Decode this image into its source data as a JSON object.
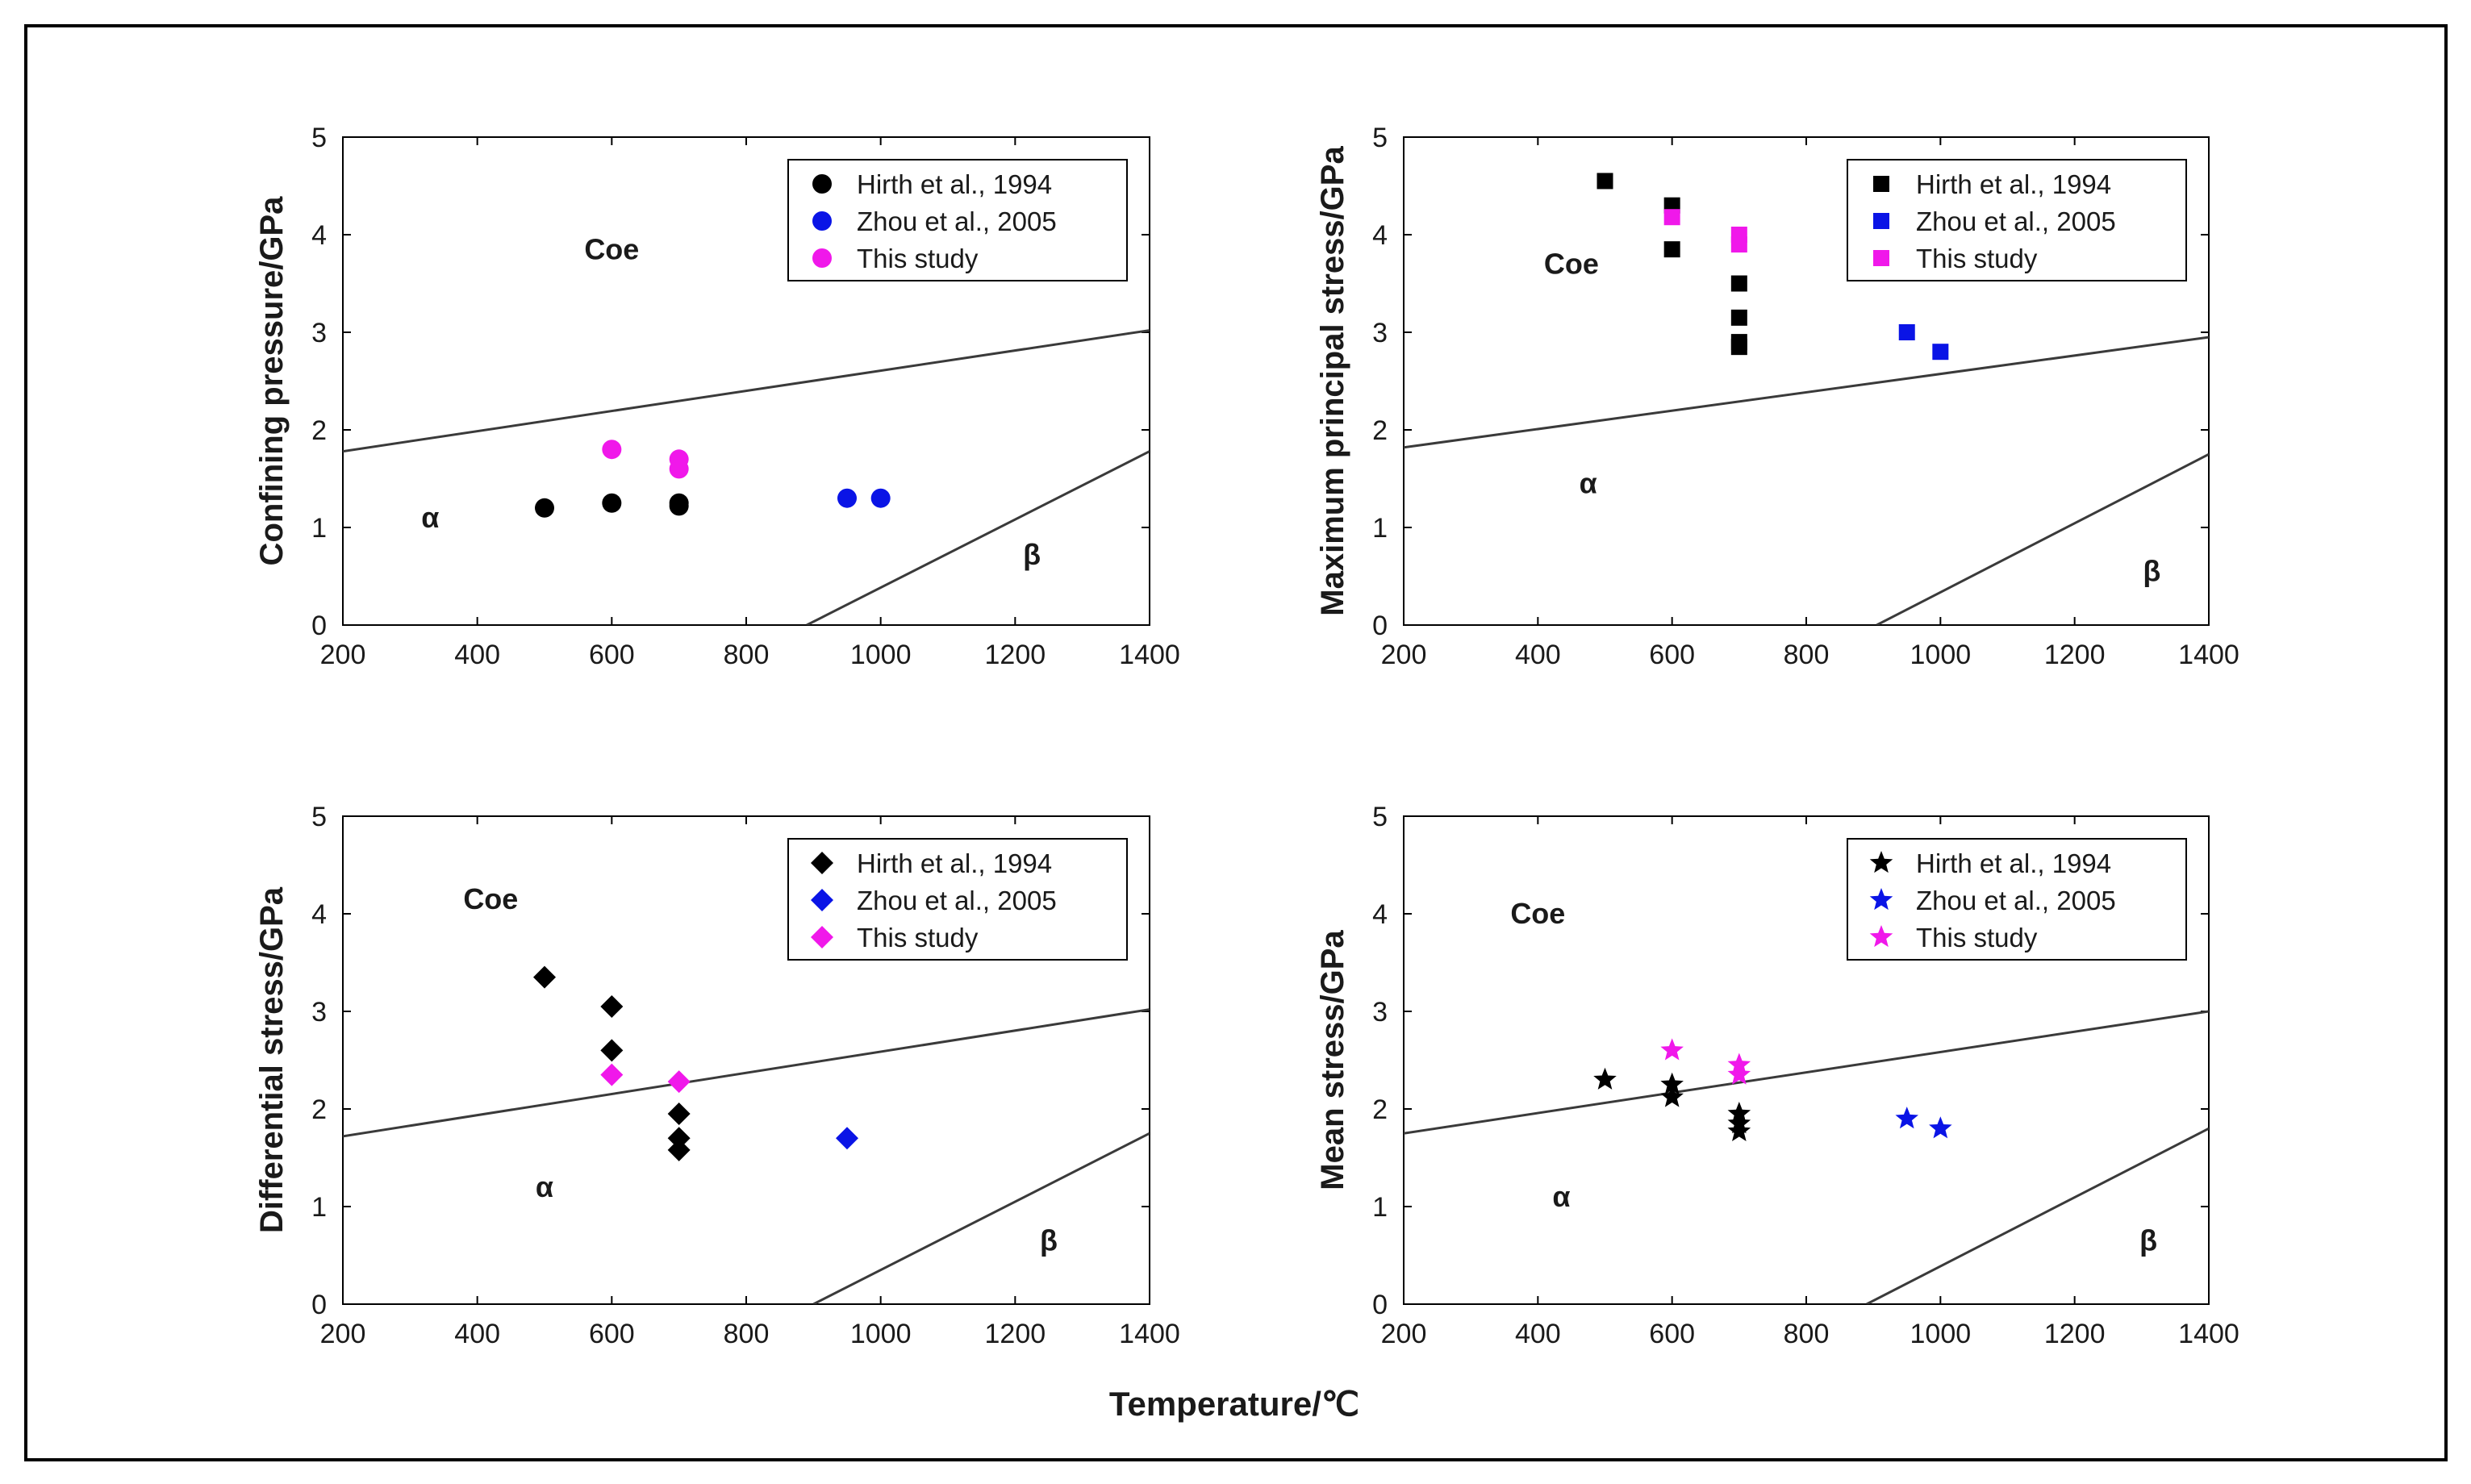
{
  "colors": {
    "hirth": "#000000",
    "zhou": "#0a14e6",
    "this_study": "#f018ea",
    "boundary": "#3a3a3a",
    "frame": "#000000"
  },
  "figure": {
    "xlabel": "Temperature/℃"
  },
  "chart_data": [
    {
      "type": "scatter",
      "marker": "circle",
      "ylabel": "Confining pressure/GPa",
      "xlim": [
        200,
        1400
      ],
      "ylim": [
        0,
        5
      ],
      "xticks": [
        "200",
        "400",
        "600",
        "800",
        "1000",
        "1200",
        "1400"
      ],
      "yticks": [
        "0",
        "1",
        "2",
        "3",
        "4",
        "5"
      ],
      "legend_position": "top-right",
      "regions": [
        {
          "label": "Coe",
          "x": 600,
          "y": 3.75
        },
        {
          "label": "α",
          "x": 330,
          "y": 1.0
        },
        {
          "label": "β",
          "x": 1225,
          "y": 0.62
        }
      ],
      "boundaries": [
        {
          "name": "Coe-α boundary",
          "x": [
            200,
            1400
          ],
          "y": [
            1.78,
            3.02
          ]
        },
        {
          "name": "α-β boundary",
          "x": [
            890,
            1400
          ],
          "y": [
            0,
            1.78
          ]
        }
      ],
      "series": [
        {
          "name": "Hirth et al., 1994",
          "color_key": "hirth",
          "points": [
            [
              500,
              1.2
            ],
            [
              600,
              1.25
            ],
            [
              700,
              1.22
            ],
            [
              700,
              1.25
            ]
          ]
        },
        {
          "name": "Zhou et al., 2005",
          "color_key": "zhou",
          "points": [
            [
              950,
              1.3
            ],
            [
              1000,
              1.3
            ]
          ]
        },
        {
          "name": "This study",
          "color_key": "this_study",
          "points": [
            [
              600,
              1.8
            ],
            [
              700,
              1.6
            ],
            [
              700,
              1.7
            ]
          ]
        }
      ]
    },
    {
      "type": "scatter",
      "marker": "square",
      "ylabel": "Maximum principal stress/GPa",
      "xlim": [
        200,
        1400
      ],
      "ylim": [
        0,
        5
      ],
      "xticks": [
        "200",
        "400",
        "600",
        "800",
        "1000",
        "1200",
        "1400"
      ],
      "yticks": [
        "0",
        "1",
        "2",
        "3",
        "4",
        "5"
      ],
      "legend_position": "top-right",
      "regions": [
        {
          "label": "Coe",
          "x": 450,
          "y": 3.6
        },
        {
          "label": "α",
          "x": 475,
          "y": 1.35
        },
        {
          "label": "β",
          "x": 1315,
          "y": 0.45
        }
      ],
      "boundaries": [
        {
          "name": "Coe-α boundary",
          "x": [
            200,
            1400
          ],
          "y": [
            1.82,
            2.95
          ]
        },
        {
          "name": "α-β boundary",
          "x": [
            905,
            1400
          ],
          "y": [
            0,
            1.75
          ]
        }
      ],
      "series": [
        {
          "name": "Hirth et al., 1994",
          "color_key": "hirth",
          "points": [
            [
              500,
              4.55
            ],
            [
              600,
              4.3
            ],
            [
              600,
              3.85
            ],
            [
              700,
              3.5
            ],
            [
              700,
              3.15
            ],
            [
              700,
              2.9
            ],
            [
              700,
              2.85
            ]
          ]
        },
        {
          "name": "Zhou et al., 2005",
          "color_key": "zhou",
          "points": [
            [
              950,
              3.0
            ],
            [
              1000,
              2.8
            ]
          ]
        },
        {
          "name": "This study",
          "color_key": "this_study",
          "points": [
            [
              600,
              4.18
            ],
            [
              700,
              4.0
            ],
            [
              700,
              3.9
            ]
          ]
        }
      ]
    },
    {
      "type": "scatter",
      "marker": "diamond",
      "ylabel": "Differential stress/GPa",
      "xlim": [
        200,
        1400
      ],
      "ylim": [
        0,
        5
      ],
      "xticks": [
        "200",
        "400",
        "600",
        "800",
        "1000",
        "1200",
        "1400"
      ],
      "yticks": [
        "0",
        "1",
        "2",
        "3",
        "4",
        "5"
      ],
      "legend_position": "top-right",
      "regions": [
        {
          "label": "Coe",
          "x": 420,
          "y": 4.05
        },
        {
          "label": "α",
          "x": 500,
          "y": 1.1
        },
        {
          "label": "β",
          "x": 1250,
          "y": 0.55
        }
      ],
      "boundaries": [
        {
          "name": "Coe-α boundary",
          "x": [
            200,
            1400
          ],
          "y": [
            1.72,
            3.02
          ]
        },
        {
          "name": "α-β boundary",
          "x": [
            900,
            1400
          ],
          "y": [
            0,
            1.75
          ]
        }
      ],
      "series": [
        {
          "name": "Hirth et al., 1994",
          "color_key": "hirth",
          "points": [
            [
              500,
              3.35
            ],
            [
              600,
              3.05
            ],
            [
              600,
              2.6
            ],
            [
              700,
              1.95
            ],
            [
              700,
              1.7
            ],
            [
              700,
              1.58
            ]
          ]
        },
        {
          "name": "Zhou et al., 2005",
          "color_key": "zhou",
          "points": [
            [
              950,
              1.7
            ]
          ]
        },
        {
          "name": "This study",
          "color_key": "this_study",
          "points": [
            [
              600,
              2.35
            ],
            [
              700,
              2.28
            ]
          ]
        }
      ]
    },
    {
      "type": "scatter",
      "marker": "star",
      "ylabel": "Mean stress/GPa",
      "xlim": [
        200,
        1400
      ],
      "ylim": [
        0,
        5
      ],
      "xticks": [
        "200",
        "400",
        "600",
        "800",
        "1000",
        "1200",
        "1400"
      ],
      "yticks": [
        "0",
        "1",
        "2",
        "3",
        "4",
        "5"
      ],
      "legend_position": "top-right",
      "regions": [
        {
          "label": "Coe",
          "x": 400,
          "y": 3.9
        },
        {
          "label": "α",
          "x": 435,
          "y": 1.0
        },
        {
          "label": "β",
          "x": 1310,
          "y": 0.55
        }
      ],
      "boundaries": [
        {
          "name": "Coe-α boundary",
          "x": [
            200,
            1400
          ],
          "y": [
            1.75,
            3.0
          ]
        },
        {
          "name": "α-β boundary",
          "x": [
            890,
            1400
          ],
          "y": [
            0,
            1.8
          ]
        }
      ],
      "series": [
        {
          "name": "Hirth et al., 1994",
          "color_key": "hirth",
          "points": [
            [
              500,
              2.3
            ],
            [
              600,
              2.25
            ],
            [
              600,
              2.12
            ],
            [
              700,
              1.95
            ],
            [
              700,
              1.85
            ],
            [
              700,
              1.77
            ]
          ]
        },
        {
          "name": "Zhou et al., 2005",
          "color_key": "zhou",
          "points": [
            [
              950,
              1.9
            ],
            [
              1000,
              1.8
            ]
          ]
        },
        {
          "name": "This study",
          "color_key": "this_study",
          "points": [
            [
              600,
              2.6
            ],
            [
              700,
              2.45
            ],
            [
              700,
              2.35
            ]
          ]
        }
      ]
    }
  ]
}
